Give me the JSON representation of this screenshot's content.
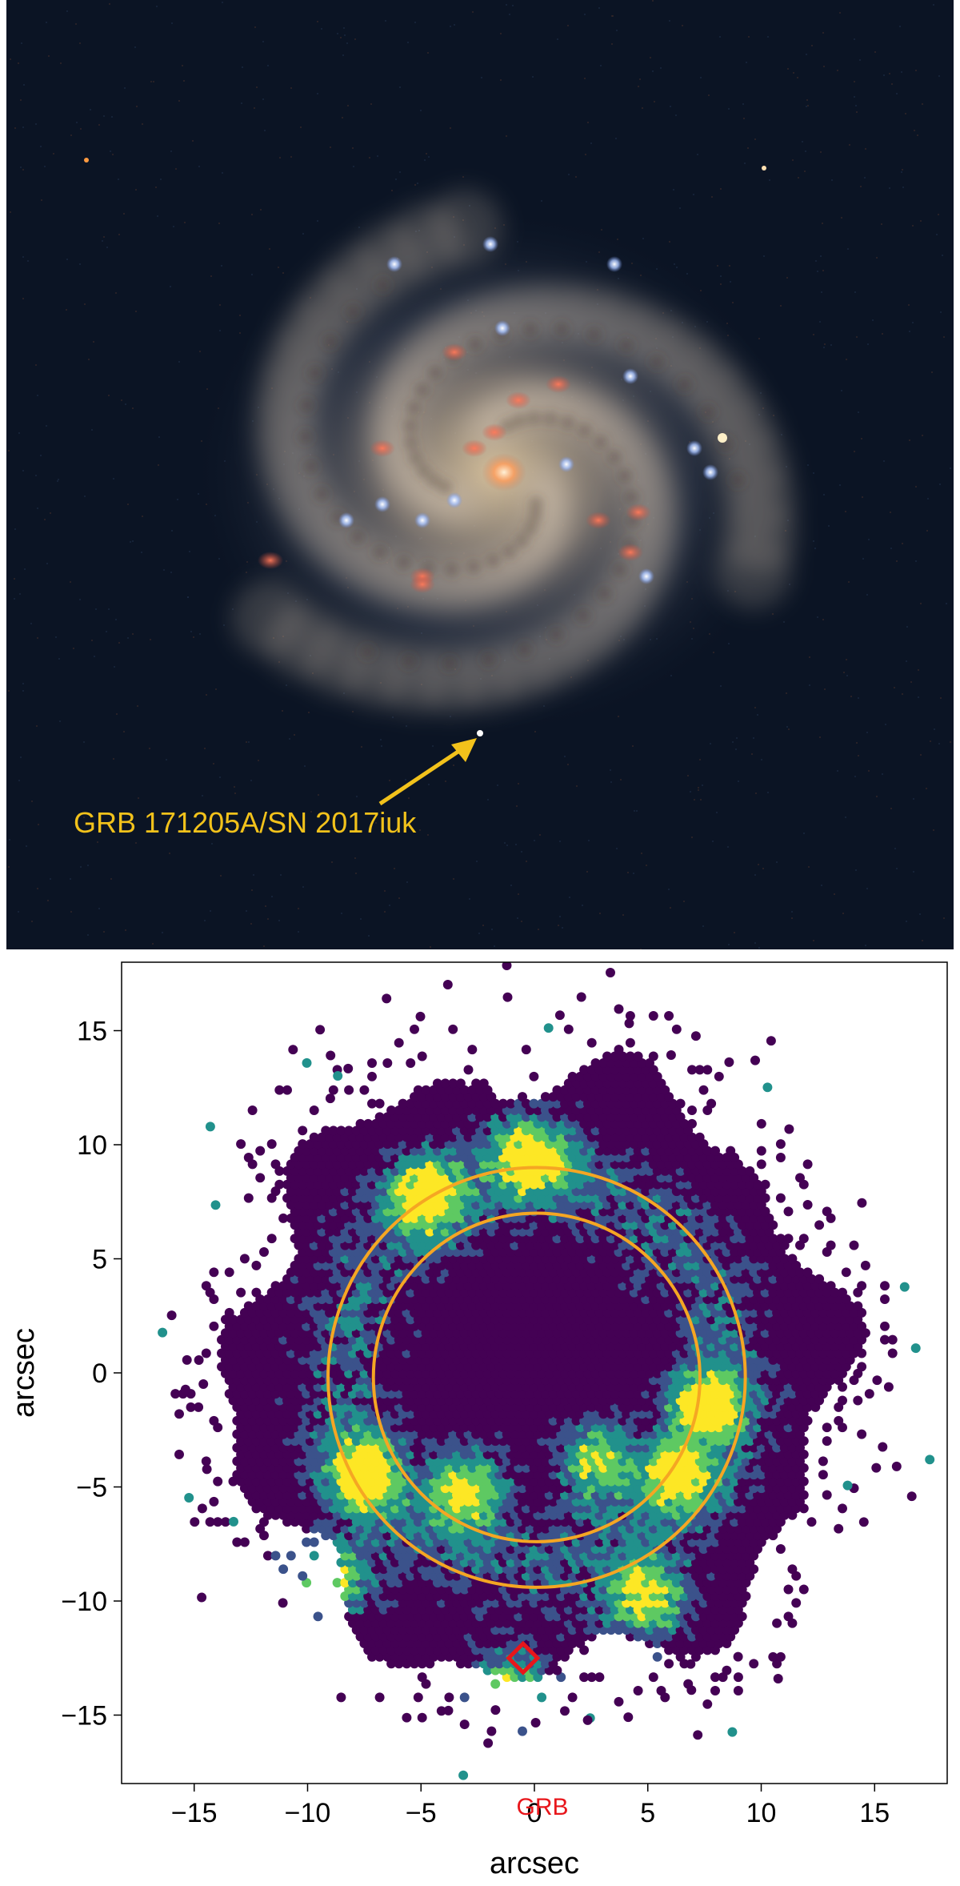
{
  "galaxy_image": {
    "annotation_label": "GRB 171205A/SN 2017iuk",
    "annotation_color": "#f2c21b",
    "background_color": "#0b1424"
  },
  "map_plot": {
    "xlabel": "arcsec",
    "ylabel": "arcsec",
    "xlim": [
      -18.2,
      18.2
    ],
    "ylim": [
      -18.0,
      18.0
    ],
    "x_ticks": [
      "−15",
      "−10",
      "−5",
      "0",
      "5",
      "10",
      "15"
    ],
    "y_ticks": [
      "15",
      "10",
      "5",
      "0",
      "−5",
      "−10",
      "−15"
    ],
    "x_tick_values": [
      -15,
      -10,
      -5,
      0,
      5,
      10,
      15
    ],
    "y_tick_values": [
      15,
      10,
      5,
      0,
      -5,
      -10,
      -15
    ],
    "rings": [
      {
        "center": [
          0.1,
          -0.2
        ],
        "radius_arcsec": 7.2
      },
      {
        "center": [
          0.1,
          -0.2
        ],
        "radius_arcsec": 9.2
      }
    ],
    "ring_color": "#f5a623",
    "grb_marker": {
      "label": "GRB",
      "position": [
        -0.5,
        -12.5
      ],
      "color": "#e8161b"
    },
    "colormap": [
      "#440154",
      "#3b528b",
      "#21918c",
      "#5ec962",
      "#fde725"
    ]
  }
}
